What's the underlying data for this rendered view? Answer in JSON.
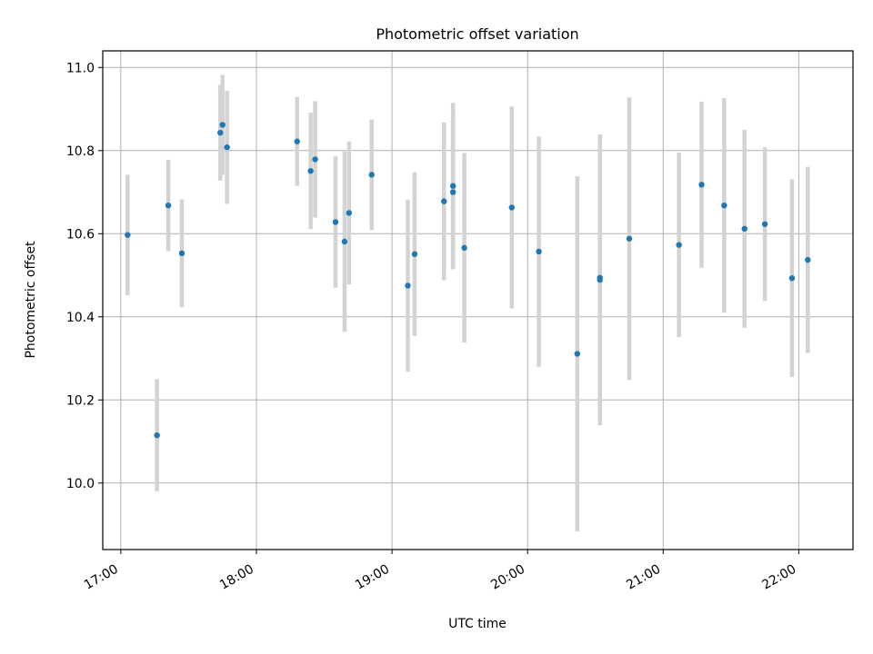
{
  "chart_data": {
    "type": "scatter",
    "title": "Photometric offset variation",
    "xlabel": "UTC time",
    "ylabel": "Photometric offset",
    "x_tick_labels": [
      "17:00",
      "18:00",
      "19:00",
      "20:00",
      "21:00",
      "22:00"
    ],
    "y_tick_labels": [
      "10.0",
      "10.2",
      "10.4",
      "10.6",
      "10.8",
      "11.0"
    ],
    "x_ticks": [
      "17:00",
      "18:00",
      "19:00",
      "20:00",
      "21:00",
      "22:00"
    ],
    "y_ticks": [
      10.0,
      10.2,
      10.4,
      10.6,
      10.8,
      11.0
    ],
    "xlim": [
      "16:52",
      "22:24"
    ],
    "ylim": [
      9.84,
      11.04
    ],
    "grid": true,
    "marker_color": "#1f77b4",
    "errorbar_color": "#d3d3d3",
    "points": [
      {
        "x": "17:03",
        "y": 10.597,
        "yerr": 0.145
      },
      {
        "x": "17:16",
        "y": 10.115,
        "yerr": 0.135
      },
      {
        "x": "17:21",
        "y": 10.668,
        "yerr": 0.11
      },
      {
        "x": "17:27",
        "y": 10.553,
        "yerr": 0.13
      },
      {
        "x": "17:44",
        "y": 10.843,
        "yerr": 0.115
      },
      {
        "x": "17:45",
        "y": 10.862,
        "yerr": 0.12
      },
      {
        "x": "17:47",
        "y": 10.808,
        "yerr": 0.136
      },
      {
        "x": "18:18",
        "y": 10.822,
        "yerr": 0.107
      },
      {
        "x": "18:24",
        "y": 10.751,
        "yerr": 0.14
      },
      {
        "x": "18:26",
        "y": 10.779,
        "yerr": 0.14
      },
      {
        "x": "18:35",
        "y": 10.628,
        "yerr": 0.158
      },
      {
        "x": "18:39",
        "y": 10.581,
        "yerr": 0.217
      },
      {
        "x": "18:41",
        "y": 10.65,
        "yerr": 0.172
      },
      {
        "x": "18:51",
        "y": 10.742,
        "yerr": 0.133
      },
      {
        "x": "19:07",
        "y": 10.475,
        "yerr": 0.207
      },
      {
        "x": "19:10",
        "y": 10.551,
        "yerr": 0.197
      },
      {
        "x": "19:23",
        "y": 10.678,
        "yerr": 0.19
      },
      {
        "x": "19:27",
        "y": 10.715,
        "yerr": 0.2
      },
      {
        "x": "19:27",
        "y": 10.7,
        "yerr": 0.185
      },
      {
        "x": "19:32",
        "y": 10.566,
        "yerr": 0.228
      },
      {
        "x": "19:53",
        "y": 10.663,
        "yerr": 0.243
      },
      {
        "x": "20:05",
        "y": 10.557,
        "yerr": 0.277
      },
      {
        "x": "20:22",
        "y": 10.311,
        "yerr": 0.427
      },
      {
        "x": "20:32",
        "y": 10.494,
        "yerr": 0.345
      },
      {
        "x": "20:32",
        "y": 10.489,
        "yerr": 0.35
      },
      {
        "x": "20:45",
        "y": 10.588,
        "yerr": 0.34
      },
      {
        "x": "21:07",
        "y": 10.573,
        "yerr": 0.222
      },
      {
        "x": "21:17",
        "y": 10.718,
        "yerr": 0.2
      },
      {
        "x": "21:27",
        "y": 10.668,
        "yerr": 0.258
      },
      {
        "x": "21:36",
        "y": 10.612,
        "yerr": 0.238
      },
      {
        "x": "21:45",
        "y": 10.623,
        "yerr": 0.185
      },
      {
        "x": "21:57",
        "y": 10.493,
        "yerr": 0.238
      },
      {
        "x": "22:04",
        "y": 10.537,
        "yerr": 0.224
      }
    ]
  }
}
